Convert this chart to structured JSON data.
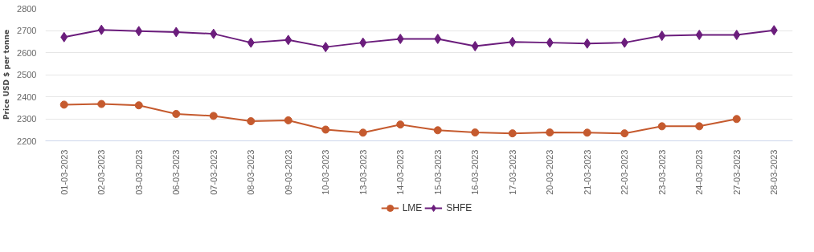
{
  "chart_data": {
    "type": "line",
    "ylabel": "Price USD $ per tonne",
    "categories": [
      "01-03-2023",
      "02-03-2023",
      "03-03-2023",
      "06-03-2023",
      "07-03-2023",
      "08-03-2023",
      "09-03-2023",
      "10-03-2023",
      "13-03-2023",
      "14-03-2023",
      "15-03-2023",
      "16-03-2023",
      "17-03-2023",
      "20-03-2023",
      "21-03-2023",
      "22-03-2023",
      "23-03-2023",
      "24-03-2023",
      "27-03-2023",
      "28-03-2023"
    ],
    "series": [
      {
        "name": "LME",
        "color": "#c55a2e",
        "marker": "circle",
        "values": [
          2364,
          2367,
          2361,
          2322,
          2313,
          2289,
          2293,
          2251,
          2237,
          2274,
          2248,
          2238,
          2234,
          2238,
          2237,
          2234,
          2266,
          2266,
          2299,
          null
        ]
      },
      {
        "name": "SHFE",
        "color": "#6b1d7c",
        "marker": "diamond",
        "values": [
          2670,
          2703,
          2697,
          2693,
          2685,
          2645,
          2657,
          2625,
          2645,
          2662,
          2662,
          2629,
          2648,
          2645,
          2641,
          2645,
          2676,
          2680,
          2680,
          2701
        ]
      }
    ],
    "ylim": [
      2200,
      2800
    ],
    "yticks": [
      2200,
      2300,
      2400,
      2500,
      2600,
      2700,
      2800
    ],
    "grid": "y",
    "legend": "bottom",
    "line_style": "solid"
  }
}
